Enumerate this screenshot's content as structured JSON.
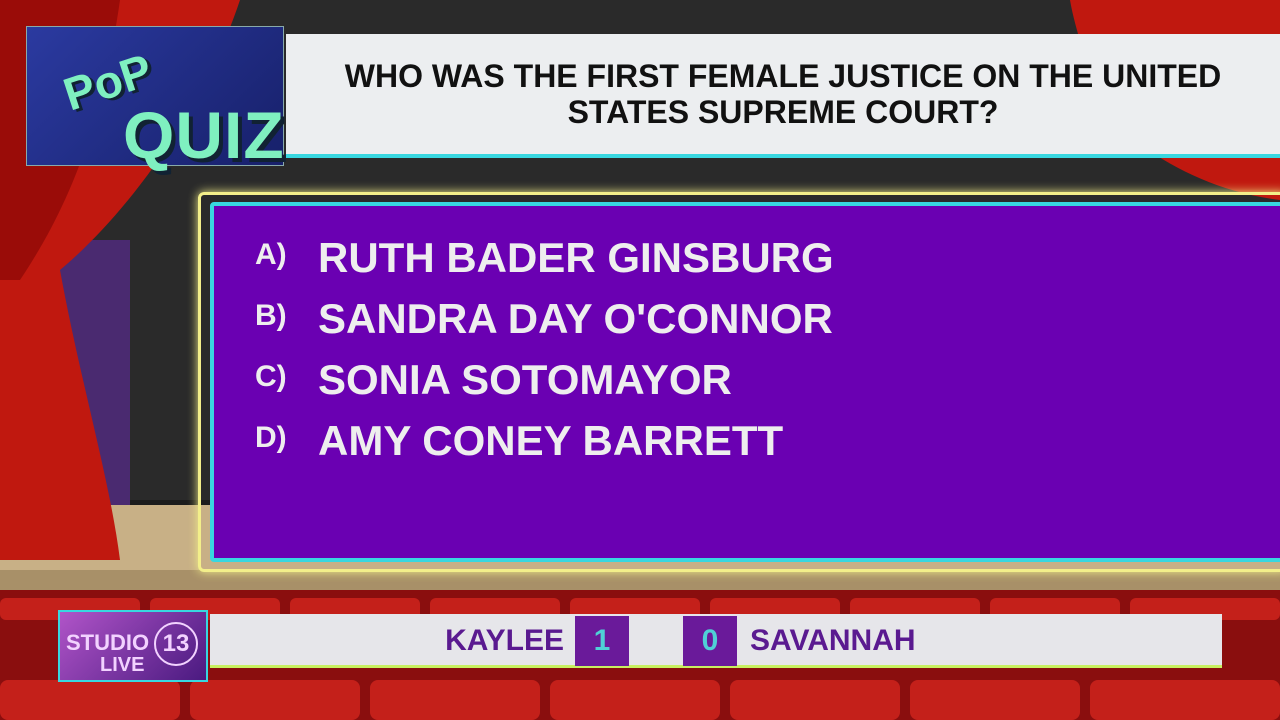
{
  "logo": {
    "line1": "PoP",
    "line2": "QUIZ"
  },
  "question": "WHO WAS THE FIRST FEMALE JUSTICE ON THE UNITED STATES SUPREME COURT?",
  "answers": [
    {
      "letter": "A)",
      "text": "RUTH BADER GINSBURG"
    },
    {
      "letter": "B)",
      "text": "SANDRA DAY O'CONNOR"
    },
    {
      "letter": "C)",
      "text": "SONIA SOTOMAYOR"
    },
    {
      "letter": "D)",
      "text": "AMY CONEY BARRETT"
    }
  ],
  "scoreboard": {
    "station": {
      "name": "STUDIO",
      "number": "13",
      "tag": "LIVE"
    },
    "players": [
      {
        "name": "KAYLEE",
        "score": 1
      },
      {
        "name": "SAVANNAH",
        "score": 0
      }
    ]
  }
}
